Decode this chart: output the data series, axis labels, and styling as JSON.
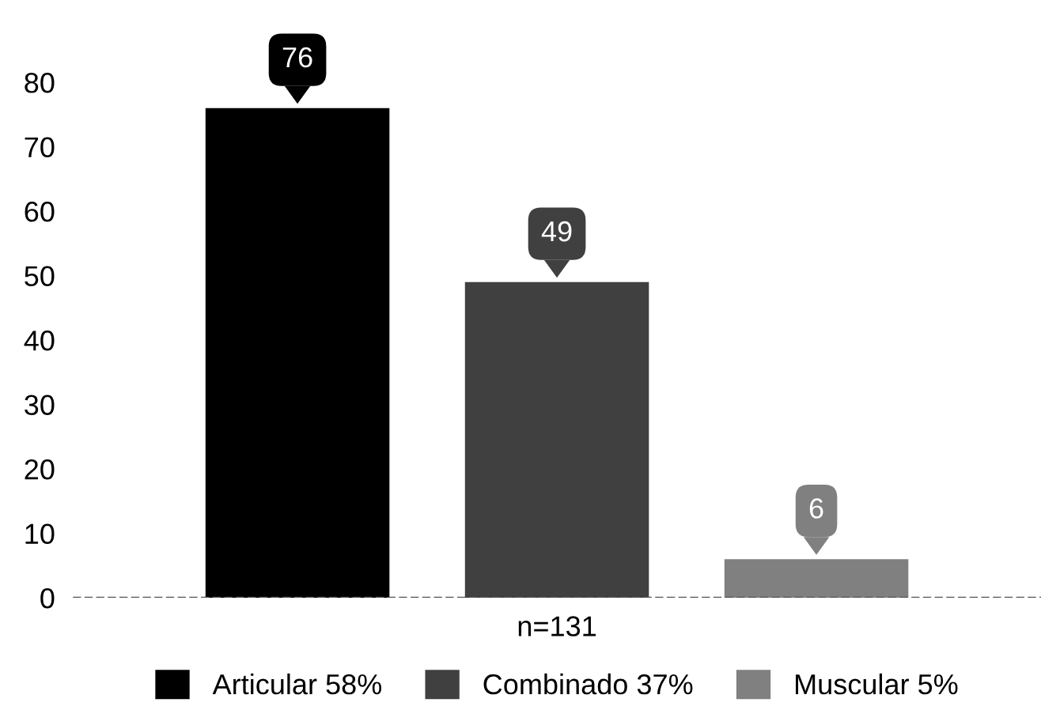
{
  "chart_data": {
    "type": "bar",
    "categories": [
      "n=131"
    ],
    "series": [
      {
        "name": "Articular 58%",
        "color": "#000000",
        "values": [
          76
        ]
      },
      {
        "name": "Combinado 37%",
        "color": "#404040",
        "values": [
          49
        ]
      },
      {
        "name": "Muscular 5%",
        "color": "#808080",
        "values": [
          6
        ]
      }
    ],
    "ylim": [
      0,
      80
    ],
    "yticks": [
      0,
      10,
      20,
      30,
      40,
      50,
      60,
      70,
      80
    ],
    "ref_lines": [
      {
        "axis": "y",
        "value": 0,
        "color": "#555555",
        "line_style": "dashed"
      }
    ],
    "data_labels": true,
    "grid": false,
    "legend": "bottom"
  }
}
